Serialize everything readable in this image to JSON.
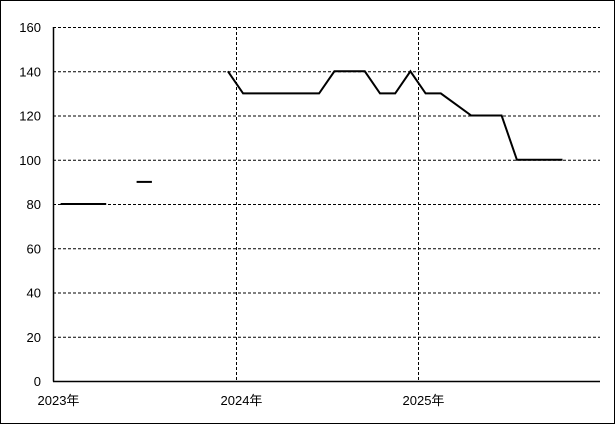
{
  "chart_data": {
    "type": "line",
    "title": "",
    "xlabel": "",
    "ylabel": "",
    "ylim": [
      0,
      160
    ],
    "yticks": [
      "0",
      "20",
      "40",
      "60",
      "80",
      "100",
      "120",
      "140",
      "160"
    ],
    "xticks": [
      {
        "label": "2023年",
        "date": "2023-01"
      },
      {
        "label": "2024年",
        "date": "2024-01"
      },
      {
        "label": "2025年",
        "date": "2025-01"
      }
    ],
    "xlim": [
      "2023-01",
      "2025-12"
    ],
    "grid": true,
    "line_color": "#000000",
    "x": [
      "2023-01",
      "2023-02",
      "2023-03",
      "2023-04",
      "2023-05",
      "2023-06",
      "2023-07",
      "2023-08",
      "2023-09",
      "2023-10",
      "2023-11",
      "2023-12",
      "2024-01",
      "2024-02",
      "2024-03",
      "2024-04",
      "2024-05",
      "2024-06",
      "2024-07",
      "2024-08",
      "2024-09",
      "2024-10",
      "2024-11",
      "2024-12",
      "2025-01",
      "2025-02",
      "2025-03",
      "2025-04",
      "2025-05",
      "2025-06",
      "2025-07",
      "2025-08",
      "2025-09",
      "2025-10"
    ],
    "values": [
      80,
      80,
      80,
      80,
      null,
      90,
      90,
      null,
      null,
      null,
      null,
      140,
      130,
      130,
      130,
      130,
      130,
      130,
      140,
      140,
      140,
      130,
      130,
      140,
      130,
      130,
      125,
      120,
      120,
      120,
      100,
      100,
      100,
      100
    ]
  }
}
